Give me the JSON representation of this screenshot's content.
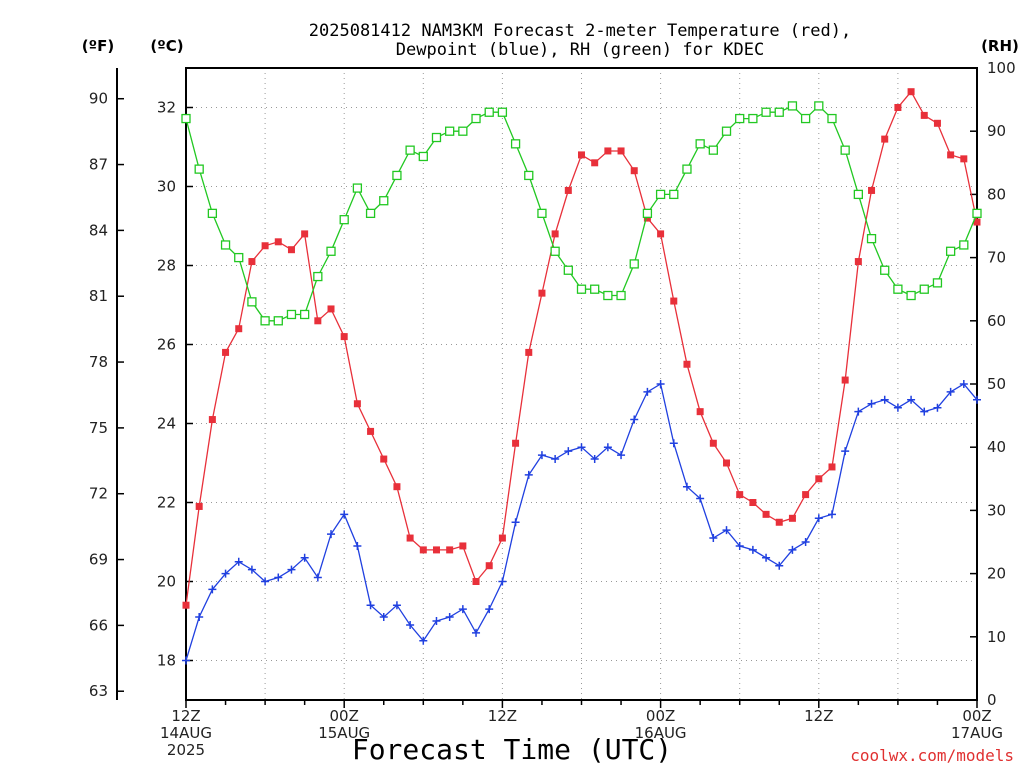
{
  "chart_data": {
    "type": "line",
    "title_line1": "2025081412 NAM3KM Forecast 2-meter Temperature (red),",
    "title_line2": "Dewpoint (blue), RH (green) for KDEC",
    "xlabel": "Forecast Time (UTC)",
    "credit": "coolwx.com/models",
    "unit_f": "(ºF)",
    "unit_c": "(ºC)",
    "unit_rh": "(RH)",
    "ylim_c": [
      17,
      33
    ],
    "ylim_rh": [
      0,
      100
    ],
    "xlim_hours": [
      0,
      60
    ],
    "grid": true,
    "f_ticks": [
      "63",
      "66",
      "69",
      "72",
      "75",
      "78",
      "81",
      "84",
      "87",
      "90"
    ],
    "c_ticks": [
      "18",
      "20",
      "22",
      "24",
      "26",
      "28",
      "30",
      "32"
    ],
    "rh_ticks": [
      "0",
      "10",
      "20",
      "30",
      "40",
      "50",
      "60",
      "70",
      "80",
      "90",
      "100"
    ],
    "x_ticks": [
      {
        "hour": 0,
        "lines": [
          "12Z",
          "14AUG",
          "2025"
        ]
      },
      {
        "hour": 12,
        "lines": [
          "00Z",
          "15AUG"
        ]
      },
      {
        "hour": 24,
        "lines": [
          "12Z"
        ]
      },
      {
        "hour": 36,
        "lines": [
          "00Z",
          "16AUG"
        ]
      },
      {
        "hour": 48,
        "lines": [
          "12Z"
        ]
      },
      {
        "hour": 60,
        "lines": [
          "00Z",
          "17AUG"
        ]
      }
    ],
    "series": [
      {
        "name": "Temperature",
        "axis": "c",
        "color": "#e8303a",
        "marker": "filled-square",
        "values": [
          [
            0,
            19.4
          ],
          [
            1,
            21.9
          ],
          [
            2,
            24.1
          ],
          [
            3,
            25.8
          ],
          [
            4,
            26.4
          ],
          [
            5,
            28.1
          ],
          [
            6,
            28.5
          ],
          [
            7,
            28.6
          ],
          [
            8,
            28.4
          ],
          [
            9,
            28.8
          ],
          [
            10,
            26.6
          ],
          [
            11,
            26.9
          ],
          [
            12,
            26.2
          ],
          [
            13,
            24.5
          ],
          [
            14,
            23.8
          ],
          [
            15,
            23.1
          ],
          [
            16,
            22.4
          ],
          [
            17,
            21.1
          ],
          [
            18,
            20.8
          ],
          [
            19,
            20.8
          ],
          [
            20,
            20.8
          ],
          [
            21,
            20.9
          ],
          [
            22,
            20.0
          ],
          [
            23,
            20.4
          ],
          [
            24,
            21.1
          ],
          [
            25,
            23.5
          ],
          [
            26,
            25.8
          ],
          [
            27,
            27.3
          ],
          [
            28,
            28.8
          ],
          [
            29,
            29.9
          ],
          [
            30,
            30.8
          ],
          [
            31,
            30.6
          ],
          [
            32,
            30.9
          ],
          [
            33,
            30.9
          ],
          [
            34,
            30.4
          ],
          [
            35,
            29.2
          ],
          [
            36,
            28.8
          ],
          [
            37,
            27.1
          ],
          [
            38,
            25.5
          ],
          [
            39,
            24.3
          ],
          [
            40,
            23.5
          ],
          [
            41,
            23.0
          ],
          [
            42,
            22.2
          ],
          [
            43,
            22.0
          ],
          [
            44,
            21.7
          ],
          [
            45,
            21.5
          ],
          [
            46,
            21.6
          ],
          [
            47,
            22.2
          ],
          [
            48,
            22.6
          ],
          [
            49,
            22.9
          ],
          [
            50,
            25.1
          ],
          [
            51,
            28.1
          ],
          [
            52,
            29.9
          ],
          [
            53,
            31.2
          ],
          [
            54,
            32.0
          ],
          [
            55,
            32.4
          ],
          [
            56,
            31.8
          ],
          [
            57,
            31.6
          ],
          [
            58,
            30.8
          ],
          [
            59,
            30.7
          ],
          [
            60,
            29.1
          ]
        ]
      },
      {
        "name": "Dewpoint",
        "axis": "c",
        "color": "#2040e0",
        "marker": "plus",
        "values": [
          [
            0,
            18.0
          ],
          [
            1,
            19.1
          ],
          [
            2,
            19.8
          ],
          [
            3,
            20.2
          ],
          [
            4,
            20.5
          ],
          [
            5,
            20.3
          ],
          [
            6,
            20.0
          ],
          [
            7,
            20.1
          ],
          [
            8,
            20.3
          ],
          [
            9,
            20.6
          ],
          [
            10,
            20.1
          ],
          [
            11,
            21.2
          ],
          [
            12,
            21.7
          ],
          [
            13,
            20.9
          ],
          [
            14,
            19.4
          ],
          [
            15,
            19.1
          ],
          [
            16,
            19.4
          ],
          [
            17,
            18.9
          ],
          [
            18,
            18.5
          ],
          [
            19,
            19.0
          ],
          [
            20,
            19.1
          ],
          [
            21,
            19.3
          ],
          [
            22,
            18.7
          ],
          [
            23,
            19.3
          ],
          [
            24,
            20.0
          ],
          [
            25,
            21.5
          ],
          [
            26,
            22.7
          ],
          [
            27,
            23.2
          ],
          [
            28,
            23.1
          ],
          [
            29,
            23.3
          ],
          [
            30,
            23.4
          ],
          [
            31,
            23.1
          ],
          [
            32,
            23.4
          ],
          [
            33,
            23.2
          ],
          [
            34,
            24.1
          ],
          [
            35,
            24.8
          ],
          [
            36,
            25.0
          ],
          [
            37,
            23.5
          ],
          [
            38,
            22.4
          ],
          [
            39,
            22.1
          ],
          [
            40,
            21.1
          ],
          [
            41,
            21.3
          ],
          [
            42,
            20.9
          ],
          [
            43,
            20.8
          ],
          [
            44,
            20.6
          ],
          [
            45,
            20.4
          ],
          [
            46,
            20.8
          ],
          [
            47,
            21.0
          ],
          [
            48,
            21.6
          ],
          [
            49,
            21.7
          ],
          [
            50,
            23.3
          ],
          [
            51,
            24.3
          ],
          [
            52,
            24.5
          ],
          [
            53,
            24.6
          ],
          [
            54,
            24.4
          ],
          [
            55,
            24.6
          ],
          [
            56,
            24.3
          ],
          [
            57,
            24.4
          ],
          [
            58,
            24.8
          ],
          [
            59,
            25.0
          ],
          [
            60,
            24.6
          ]
        ]
      },
      {
        "name": "RH",
        "axis": "rh",
        "color": "#22c822",
        "marker": "open-square",
        "values": [
          [
            0,
            92
          ],
          [
            1,
            84
          ],
          [
            2,
            77
          ],
          [
            3,
            72
          ],
          [
            4,
            70
          ],
          [
            5,
            63
          ],
          [
            6,
            60
          ],
          [
            7,
            60
          ],
          [
            8,
            61
          ],
          [
            9,
            61
          ],
          [
            10,
            67
          ],
          [
            11,
            71
          ],
          [
            12,
            76
          ],
          [
            13,
            81
          ],
          [
            14,
            77
          ],
          [
            15,
            79
          ],
          [
            16,
            83
          ],
          [
            17,
            87
          ],
          [
            18,
            86
          ],
          [
            19,
            89
          ],
          [
            20,
            90
          ],
          [
            21,
            90
          ],
          [
            22,
            92
          ],
          [
            23,
            93
          ],
          [
            24,
            93
          ],
          [
            25,
            88
          ],
          [
            26,
            83
          ],
          [
            27,
            77
          ],
          [
            28,
            71
          ],
          [
            29,
            68
          ],
          [
            30,
            65
          ],
          [
            31,
            65
          ],
          [
            32,
            64
          ],
          [
            33,
            64
          ],
          [
            34,
            69
          ],
          [
            35,
            77
          ],
          [
            36,
            80
          ],
          [
            37,
            80
          ],
          [
            38,
            84
          ],
          [
            39,
            88
          ],
          [
            40,
            87
          ],
          [
            41,
            90
          ],
          [
            42,
            92
          ],
          [
            43,
            92
          ],
          [
            44,
            93
          ],
          [
            45,
            93
          ],
          [
            46,
            94
          ],
          [
            47,
            92
          ],
          [
            48,
            94
          ],
          [
            49,
            92
          ],
          [
            50,
            87
          ],
          [
            51,
            80
          ],
          [
            52,
            73
          ],
          [
            53,
            68
          ],
          [
            54,
            65
          ],
          [
            55,
            64
          ],
          [
            56,
            65
          ],
          [
            57,
            66
          ],
          [
            58,
            71
          ],
          [
            59,
            72
          ],
          [
            60,
            77
          ]
        ]
      }
    ]
  }
}
